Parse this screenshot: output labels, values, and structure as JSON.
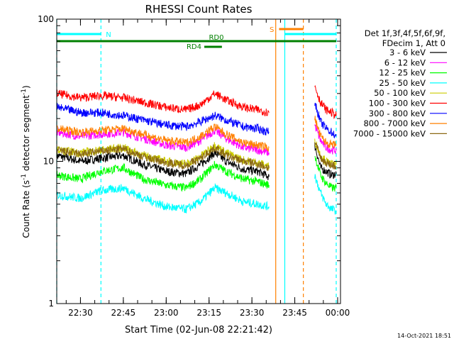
{
  "chart_data": {
    "type": "line",
    "title": "RHESSI Count Rates",
    "xlabel": "Start Time (02-Jun-08 22:21:42)",
    "ylabel_main": "Count Rate (s",
    "ylabel_exp1": "-1",
    "ylabel_mid": " detector segment",
    "ylabel_exp2": "-1",
    "ylabel_end": ")",
    "y_scale": "log",
    "ylim": [
      1,
      100
    ],
    "xlim": [
      "22:21:42",
      "00:01:00"
    ],
    "x_ticks": [
      "22:30",
      "22:45",
      "23:00",
      "23:15",
      "23:30",
      "23:45",
      "00:00"
    ],
    "y_ticks": [
      "1",
      "10",
      "100"
    ],
    "legend_header": [
      "Det 1f,3f,4f,5f,6f,9f,",
      "FDecim 1, Att 0"
    ],
    "legend_position": "right",
    "series": [
      {
        "name": "3 - 6 keV",
        "color": "#000000",
        "segments": [
          {
            "t": [
              "22:21:42",
              "22:30",
              "22:37",
              "22:45",
              "22:52",
              "23:00",
              "23:07",
              "23:12",
              "23:17",
              "23:21",
              "23:27",
              "23:32",
              "23:36"
            ],
            "v": [
              11,
              10,
              10.5,
              11,
              9.5,
              8.5,
              8.2,
              9.5,
              11.5,
              10,
              8.8,
              8.5,
              7.8
            ]
          },
          {
            "t": [
              "23:52",
              "23:54",
              "23:56",
              "23:58",
              "23:59:30"
            ],
            "v": [
              13,
              9,
              8.5,
              8,
              8.2
            ]
          }
        ]
      },
      {
        "name": "6 - 12 keV",
        "color": "#ff00ff",
        "segments": [
          {
            "t": [
              "22:21:42",
              "22:30",
              "22:37",
              "22:45",
              "22:52",
              "23:00",
              "23:07",
              "23:12",
              "23:17",
              "23:21",
              "23:27",
              "23:32",
              "23:36"
            ],
            "v": [
              16,
              15,
              15.5,
              16,
              14.5,
              13,
              12.5,
              14,
              16.5,
              14.5,
              12.5,
              12,
              11.5
            ]
          },
          {
            "t": [
              "23:52",
              "23:54",
              "23:56",
              "23:58",
              "23:59:30"
            ],
            "v": [
              18,
              14,
              12.5,
              12,
              12
            ]
          }
        ]
      },
      {
        "name": "12 - 25 keV",
        "color": "#00ff00",
        "segments": [
          {
            "t": [
              "22:21:42",
              "22:30",
              "22:37",
              "22:45",
              "22:52",
              "23:00",
              "23:07",
              "23:12",
              "23:17",
              "23:21",
              "23:27",
              "23:32",
              "23:36"
            ],
            "v": [
              8,
              7.5,
              8.5,
              9,
              7.5,
              6.8,
              6.5,
              7.5,
              9.5,
              8.5,
              7.5,
              7.2,
              6.8
            ]
          },
          {
            "t": [
              "23:52",
              "23:54",
              "23:56",
              "23:58",
              "23:59:30"
            ],
            "v": [
              11,
              8,
              7,
              6.5,
              6.5
            ]
          }
        ]
      },
      {
        "name": "25 - 50 keV",
        "color": "#00ffff",
        "segments": [
          {
            "t": [
              "22:21:42",
              "22:30",
              "22:37",
              "22:45",
              "22:52",
              "23:00",
              "23:07",
              "23:12",
              "23:17",
              "23:21",
              "23:27",
              "23:32",
              "23:36"
            ],
            "v": [
              5.8,
              5.5,
              6.2,
              6.5,
              5.5,
              4.8,
              4.6,
              5.2,
              6.5,
              6,
              5.2,
              5,
              4.8
            ]
          },
          {
            "t": [
              "23:52",
              "23:54",
              "23:56",
              "23:58",
              "23:59:30"
            ],
            "v": [
              8,
              6,
              5,
              4.6,
              4.5
            ]
          }
        ]
      },
      {
        "name": "50 - 100 keV",
        "color": "#cccc00",
        "segments": [
          {
            "t": [
              "22:21:42",
              "22:30",
              "22:37",
              "22:45",
              "22:52",
              "23:00",
              "23:07",
              "23:12",
              "23:17",
              "23:21",
              "23:27",
              "23:32",
              "23:36"
            ],
            "v": [
              12,
              11.5,
              12,
              12.5,
              11,
              10,
              9.6,
              10.8,
              13,
              11.5,
              10.2,
              9.8,
              9.2
            ]
          },
          {
            "t": [
              "23:52",
              "23:54",
              "23:56",
              "23:58",
              "23:59:30"
            ],
            "v": [
              14,
              11,
              10,
              9.5,
              9.5
            ]
          }
        ]
      },
      {
        "name": "100 - 300 keV",
        "color": "#ff0000",
        "segments": [
          {
            "t": [
              "22:21:42",
              "22:30",
              "22:37",
              "22:45",
              "22:52",
              "23:00",
              "23:07",
              "23:12",
              "23:17",
              "23:21",
              "23:27",
              "23:32",
              "23:36"
            ],
            "v": [
              30,
              28,
              29,
              28,
              26,
              24,
              23,
              25,
              30,
              27,
              24,
              23,
              22
            ]
          },
          {
            "t": [
              "23:52",
              "23:54",
              "23:56",
              "23:58",
              "23:59:30"
            ],
            "v": [
              34,
              26,
              23,
              22,
              21
            ]
          }
        ]
      },
      {
        "name": "300 - 800 keV",
        "color": "#0000ff",
        "segments": [
          {
            "t": [
              "22:21:42",
              "22:30",
              "22:37",
              "22:45",
              "22:52",
              "23:00",
              "23:07",
              "23:12",
              "23:17",
              "23:21",
              "23:27",
              "23:32",
              "23:36"
            ],
            "v": [
              24,
              22,
              22,
              21,
              19.5,
              18,
              17.5,
              19,
              21,
              19.5,
              17.5,
              17,
              16
            ]
          },
          {
            "t": [
              "23:52",
              "23:54",
              "23:56",
              "23:58",
              "23:59:30"
            ],
            "v": [
              26,
              19,
              17,
              16,
              15
            ]
          }
        ]
      },
      {
        "name": "800 - 7000 keV",
        "color": "#ff8000",
        "segments": [
          {
            "t": [
              "22:21:42",
              "22:30",
              "22:37",
              "22:45",
              "22:52",
              "23:00",
              "23:07",
              "23:12",
              "23:17",
              "23:21",
              "23:27",
              "23:32",
              "23:36"
            ],
            "v": [
              17,
              16,
              16.5,
              17,
              15.5,
              14,
              13.5,
              15,
              17.5,
              15.5,
              13.5,
              13,
              12.5
            ]
          },
          {
            "t": [
              "23:52",
              "23:54",
              "23:56",
              "23:58",
              "23:59:30"
            ],
            "v": [
              20,
              15,
              13.5,
              13,
              13
            ]
          }
        ]
      },
      {
        "name": "7000 - 15000 keV",
        "color": "#8b6914",
        "segments": [
          {
            "t": [
              "22:21:42",
              "22:30",
              "22:37",
              "22:45",
              "22:52",
              "23:00",
              "23:07",
              "23:12",
              "23:17",
              "23:21",
              "23:27",
              "23:32",
              "23:36"
            ],
            "v": [
              12,
              11.2,
              11.8,
              12.2,
              10.8,
              9.8,
              9.4,
              10.5,
              12.5,
              11,
              10,
              9.6,
              9
            ]
          },
          {
            "t": [
              "23:52",
              "23:54",
              "23:56",
              "23:58",
              "23:59:30"
            ],
            "v": [
              14,
              10.5,
              9.8,
              9.4,
              9.2
            ]
          }
        ]
      }
    ],
    "vertical_lines": [
      {
        "t": "22:21:42",
        "color": "#00ffff",
        "style": "dashed"
      },
      {
        "t": "22:37:10",
        "color": "#00ffff",
        "style": "dashed"
      },
      {
        "t": "23:38:20",
        "color": "#ff8000",
        "style": "solid"
      },
      {
        "t": "23:41:30",
        "color": "#00ffff",
        "style": "solid"
      },
      {
        "t": "23:48:00",
        "color": "#ff8000",
        "style": "dashed"
      },
      {
        "t": "23:59:30",
        "color": "#00ffff",
        "style": "dashed"
      }
    ],
    "bars": [
      {
        "label": "N",
        "color": "#00ffff",
        "t_start": "22:21:42",
        "t_end": "22:37:10",
        "label_side": "right"
      },
      {
        "label": "",
        "color": "#00ffff",
        "t_start": "23:41:30",
        "t_end": "23:59:30",
        "label_side": "none"
      },
      {
        "label": "S",
        "color": "#ff8000",
        "t_start": "23:39:30",
        "t_end": "23:48:00",
        "label_side": "left"
      },
      {
        "label": "RD0",
        "color": "#008000",
        "t_start": "22:21:42",
        "t_end": "23:59:30",
        "label_side": "above-center"
      },
      {
        "label": "RD4",
        "color": "#008000",
        "t_start": "23:13:20",
        "t_end": "23:19:30",
        "label_side": "below-left"
      }
    ],
    "footer_date": "14-Oct-2021 18:51"
  }
}
